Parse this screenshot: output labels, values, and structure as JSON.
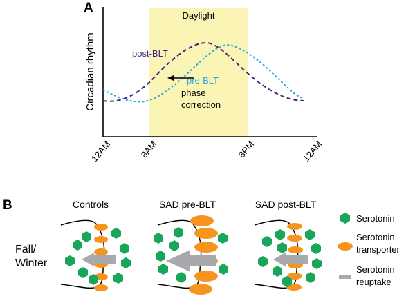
{
  "panel_a": {
    "label": "A",
    "ylabel": "Circadian rhythm",
    "daylight_label": "Daylight",
    "x_ticks": [
      "12AM",
      "8AM",
      "8PM",
      "12AM"
    ],
    "curve_post_label": "post-BLT",
    "curve_pre_label": "pre-BLT",
    "arrow_label_line1": "phase",
    "arrow_label_line2": "correction",
    "colors": {
      "daylight": "#fbf5b5",
      "post": "#4b2180",
      "pre": "#29a9e1",
      "axis": "#000000"
    }
  },
  "panel_b": {
    "label": "B",
    "row_label_line1": "Fall/",
    "row_label_line2": "Winter",
    "columns": [
      "Controls",
      "SAD pre-BLT",
      "SAD post-BLT"
    ],
    "legend": {
      "serotonin": "Serotonin",
      "transporter_line1": "Serotonin",
      "transporter_line2": "transporter",
      "reuptake_line1": "Serotonin",
      "reuptake_line2": "reuptake"
    },
    "colors": {
      "serotonin": "#19a65a",
      "transporter": "#f7941d",
      "reuptake": "#a7a9ac",
      "membrane": "#000000"
    }
  }
}
